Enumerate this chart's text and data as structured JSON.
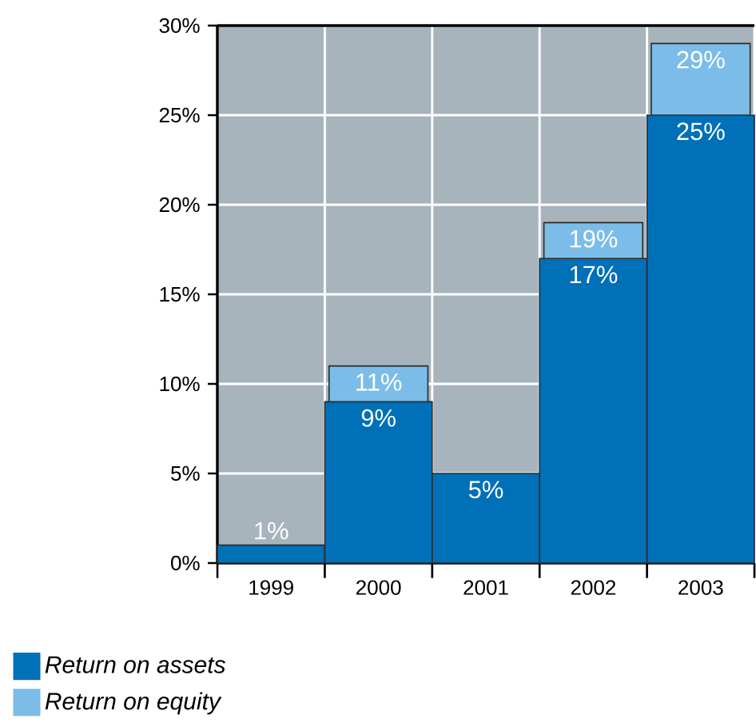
{
  "chart_data": {
    "type": "bar",
    "categories": [
      "1999",
      "2000",
      "2001",
      "2002",
      "2003"
    ],
    "series": [
      {
        "name": "Return on assets",
        "color": "#0070b8",
        "values": [
          1,
          9,
          5,
          17,
          25
        ],
        "value_labels": [
          "1%",
          "9%",
          "5%",
          "17%",
          "25%"
        ]
      },
      {
        "name": "Return on equity",
        "color": "#7bbde8",
        "values": [
          null,
          11,
          null,
          19,
          29
        ],
        "value_labels": [
          null,
          "11%",
          null,
          "19%",
          "29%"
        ]
      }
    ],
    "ylim": [
      0,
      30
    ],
    "yticks": [
      {
        "value": 0,
        "label": "0%"
      },
      {
        "value": 5,
        "label": "5%"
      },
      {
        "value": 10,
        "label": "10%"
      },
      {
        "value": 15,
        "label": "15%"
      },
      {
        "value": 20,
        "label": "20%"
      },
      {
        "value": 25,
        "label": "25%"
      },
      {
        "value": 30,
        "label": "30%"
      }
    ],
    "grid": true,
    "legend": "bottom left"
  }
}
